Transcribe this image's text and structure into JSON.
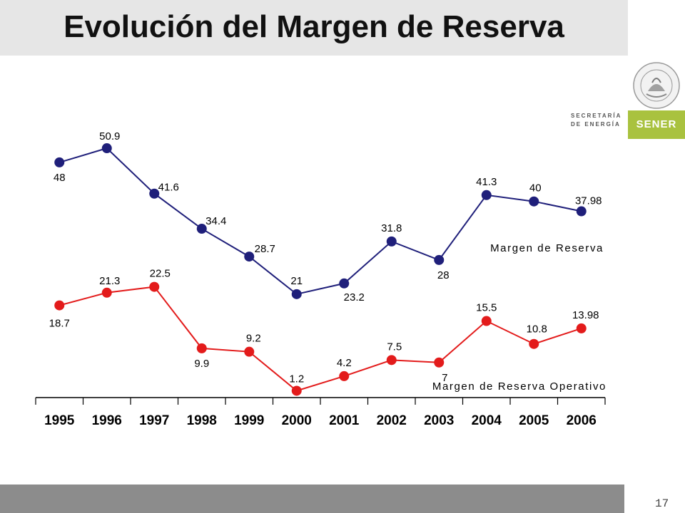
{
  "header": {
    "title": "Evolución del Margen de Reserva"
  },
  "branding": {
    "seal_text": "ESTADOS UNIDOS MEXICANOS",
    "ministry_line1": "SECRETARÍA",
    "ministry_line2": "DE ENERGÍA",
    "brand": "SENER",
    "accent_color": "#a9c23f"
  },
  "footer": {
    "page_number": "17"
  },
  "chart_data": {
    "type": "line",
    "categories": [
      "1995",
      "1996",
      "1997",
      "1998",
      "1999",
      "2000",
      "2001",
      "2002",
      "2003",
      "2004",
      "2005",
      "2006"
    ],
    "series": [
      {
        "name": "Margen de Reserva",
        "color": "#1f1f7a",
        "values": [
          48,
          50.9,
          41.6,
          34.4,
          28.7,
          21,
          23.2,
          31.8,
          28,
          41.3,
          40,
          37.98
        ],
        "labels": [
          "48",
          "50.9",
          "41.6",
          "34.4",
          "28.7",
          "21",
          "23.2",
          "31.8",
          "28",
          "41.3",
          "40",
          "37.98"
        ]
      },
      {
        "name": "Margen de Reserva Operativo",
        "color": "#e31b1b",
        "values": [
          18.7,
          21.3,
          22.5,
          9.9,
          9.2,
          1.2,
          4.2,
          7.5,
          7,
          15.5,
          10.8,
          13.98
        ],
        "labels": [
          "18.7",
          "21.3",
          "22.5",
          "9.9",
          "9.2",
          "1.2",
          "4.2",
          "7.5",
          "7",
          "15.5",
          "10.8",
          "13.98"
        ]
      }
    ],
    "title": "",
    "xlabel": "",
    "ylabel": "",
    "grid": false,
    "legend": "inline-right"
  }
}
